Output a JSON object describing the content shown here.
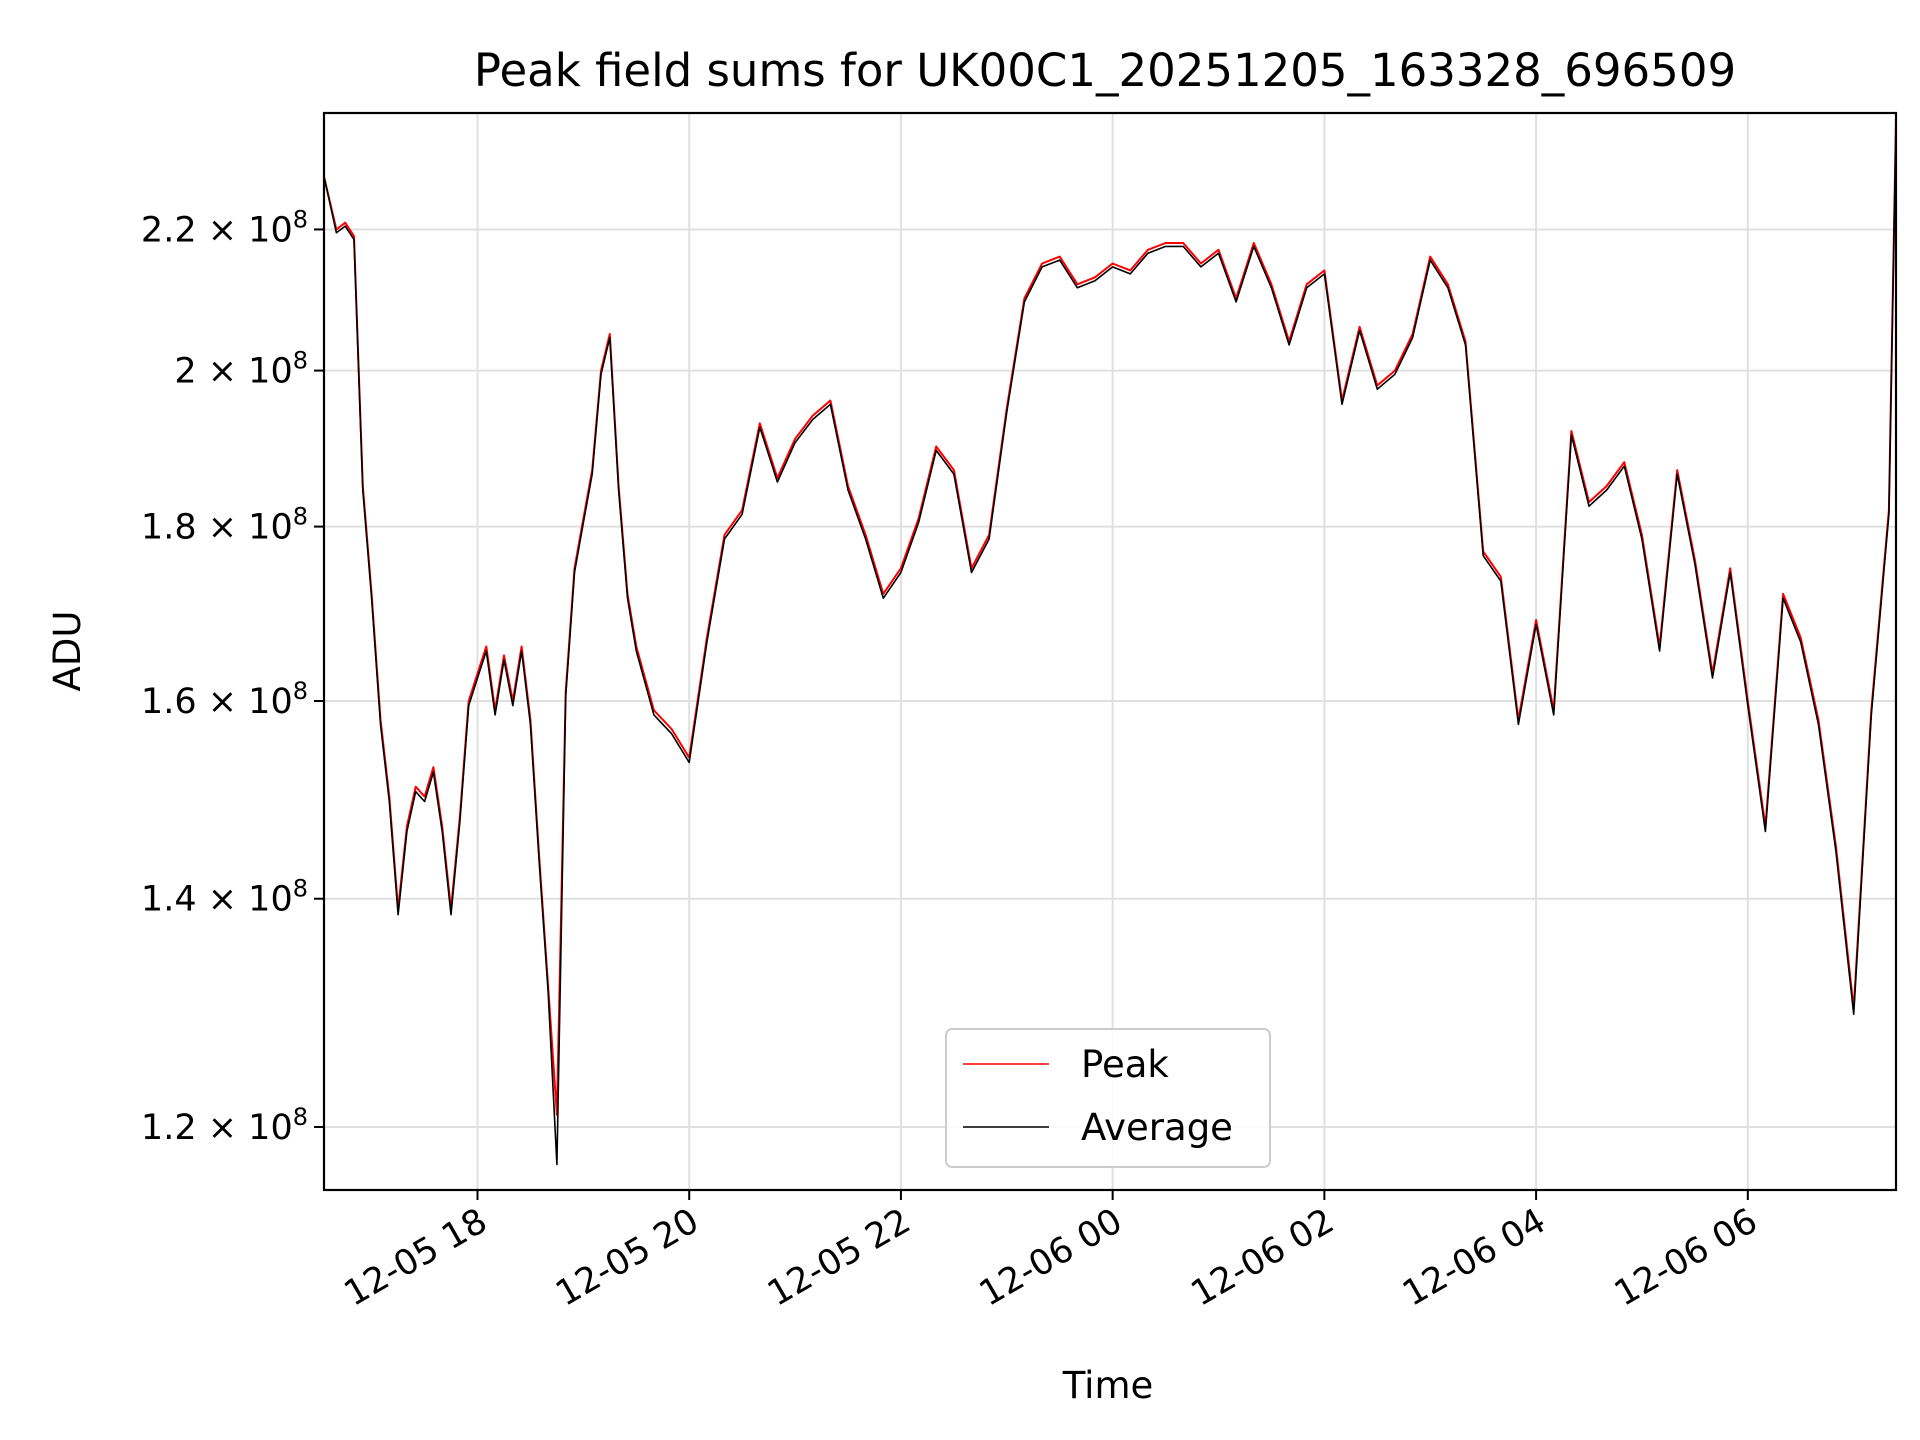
{
  "chart_data": {
    "type": "line",
    "title": "Peak field sums for UK00C1_20251205_163328_696509",
    "xlabel": "Time",
    "ylabel": "ADU",
    "yscale": "log",
    "xlim": [
      "2025-12-05 16:33",
      "2025-12-06 07:24"
    ],
    "ylim": [
      115000000,
      238000000
    ],
    "grid": true,
    "legend_position": "lower center",
    "x_ticks": [
      {
        "value": "2025-12-05 18:00",
        "label": "12-05 18"
      },
      {
        "value": "2025-12-05 20:00",
        "label": "12-05 20"
      },
      {
        "value": "2025-12-05 22:00",
        "label": "12-05 22"
      },
      {
        "value": "2025-12-06 00:00",
        "label": "12-06 00"
      },
      {
        "value": "2025-12-06 02:00",
        "label": "12-06 02"
      },
      {
        "value": "2025-12-06 04:00",
        "label": "12-06 04"
      },
      {
        "value": "2025-12-06 06:00",
        "label": "12-06 06"
      }
    ],
    "y_ticks": [
      {
        "value": 120000000,
        "mantissa": "1.2",
        "base": "10",
        "exponent": "8"
      },
      {
        "value": 140000000,
        "mantissa": "1.4",
        "base": "10",
        "exponent": "8"
      },
      {
        "value": 160000000,
        "mantissa": "1.6",
        "base": "10",
        "exponent": "8"
      },
      {
        "value": 180000000,
        "mantissa": "1.8",
        "base": "10",
        "exponent": "8"
      },
      {
        "value": 200000000,
        "mantissa": "2",
        "base": "10",
        "exponent": "8"
      },
      {
        "value": 220000000,
        "mantissa": "2.2",
        "base": "10",
        "exponent": "8"
      }
    ],
    "x": [
      "2025-12-05 16:33",
      "2025-12-05 16:40",
      "2025-12-05 16:45",
      "2025-12-05 16:50",
      "2025-12-05 16:55",
      "2025-12-05 17:00",
      "2025-12-05 17:05",
      "2025-12-05 17:10",
      "2025-12-05 17:15",
      "2025-12-05 17:20",
      "2025-12-05 17:25",
      "2025-12-05 17:30",
      "2025-12-05 17:35",
      "2025-12-05 17:40",
      "2025-12-05 17:45",
      "2025-12-05 17:50",
      "2025-12-05 17:55",
      "2025-12-05 18:00",
      "2025-12-05 18:05",
      "2025-12-05 18:10",
      "2025-12-05 18:15",
      "2025-12-05 18:20",
      "2025-12-05 18:25",
      "2025-12-05 18:30",
      "2025-12-05 18:35",
      "2025-12-05 18:40",
      "2025-12-05 18:45",
      "2025-12-05 18:50",
      "2025-12-05 18:55",
      "2025-12-05 19:00",
      "2025-12-05 19:05",
      "2025-12-05 19:10",
      "2025-12-05 19:15",
      "2025-12-05 19:20",
      "2025-12-05 19:25",
      "2025-12-05 19:30",
      "2025-12-05 19:40",
      "2025-12-05 19:50",
      "2025-12-05 20:00",
      "2025-12-05 20:10",
      "2025-12-05 20:20",
      "2025-12-05 20:30",
      "2025-12-05 20:40",
      "2025-12-05 20:50",
      "2025-12-05 21:00",
      "2025-12-05 21:10",
      "2025-12-05 21:20",
      "2025-12-05 21:30",
      "2025-12-05 21:40",
      "2025-12-05 21:50",
      "2025-12-05 22:00",
      "2025-12-05 22:10",
      "2025-12-05 22:20",
      "2025-12-05 22:30",
      "2025-12-05 22:40",
      "2025-12-05 22:50",
      "2025-12-05 23:00",
      "2025-12-05 23:10",
      "2025-12-05 23:20",
      "2025-12-05 23:30",
      "2025-12-05 23:40",
      "2025-12-05 23:50",
      "2025-12-06 00:00",
      "2025-12-06 00:10",
      "2025-12-06 00:20",
      "2025-12-06 00:30",
      "2025-12-06 00:40",
      "2025-12-06 00:50",
      "2025-12-06 01:00",
      "2025-12-06 01:10",
      "2025-12-06 01:20",
      "2025-12-06 01:30",
      "2025-12-06 01:40",
      "2025-12-06 01:50",
      "2025-12-06 02:00",
      "2025-12-06 02:10",
      "2025-12-06 02:20",
      "2025-12-06 02:30",
      "2025-12-06 02:40",
      "2025-12-06 02:50",
      "2025-12-06 03:00",
      "2025-12-06 03:10",
      "2025-12-06 03:20",
      "2025-12-06 03:30",
      "2025-12-06 03:40",
      "2025-12-06 03:50",
      "2025-12-06 04:00",
      "2025-12-06 04:10",
      "2025-12-06 04:20",
      "2025-12-06 04:30",
      "2025-12-06 04:40",
      "2025-12-06 04:50",
      "2025-12-06 05:00",
      "2025-12-06 05:10",
      "2025-12-06 05:20",
      "2025-12-06 05:30",
      "2025-12-06 05:40",
      "2025-12-06 05:50",
      "2025-12-06 06:00",
      "2025-12-06 06:10",
      "2025-12-06 06:20",
      "2025-12-06 06:30",
      "2025-12-06 06:40",
      "2025-12-06 06:50",
      "2025-12-06 07:00",
      "2025-12-06 07:10",
      "2025-12-06 07:20",
      "2025-12-06 07:24"
    ],
    "series": [
      {
        "name": "Peak",
        "color": "#ff0000",
        "values": [
          228000000,
          220000000,
          221000000,
          219000000,
          185000000,
          172000000,
          158000000,
          150000000,
          139000000,
          147000000,
          151000000,
          150000000,
          153000000,
          147000000,
          139000000,
          148000000,
          160000000,
          163000000,
          166000000,
          159000000,
          165000000,
          160000000,
          166000000,
          158000000,
          144000000,
          132000000,
          121000000,
          161000000,
          175000000,
          181000000,
          187000000,
          200000000,
          205000000,
          185000000,
          172000000,
          166000000,
          159000000,
          157000000,
          154000000,
          167000000,
          179000000,
          182000000,
          193000000,
          186000000,
          191000000,
          194000000,
          196000000,
          185000000,
          179000000,
          172000000,
          175000000,
          181000000,
          190000000,
          187000000,
          175000000,
          179000000,
          195000000,
          210000000,
          215000000,
          216000000,
          212000000,
          213000000,
          215000000,
          214000000,
          217000000,
          218000000,
          218000000,
          215000000,
          217000000,
          210000000,
          218000000,
          212000000,
          204000000,
          212000000,
          214000000,
          196000000,
          206000000,
          198000000,
          200000000,
          205000000,
          216000000,
          212000000,
          204000000,
          177000000,
          174000000,
          158000000,
          169000000,
          159000000,
          192000000,
          183000000,
          185000000,
          188000000,
          179000000,
          166000000,
          187000000,
          176000000,
          163000000,
          175000000,
          160000000,
          147000000,
          172000000,
          167000000,
          158000000,
          145000000,
          130000000,
          159000000,
          182000000,
          237000000
        ]
      },
      {
        "name": "Average",
        "color": "#000000",
        "values": [
          228000000,
          219500000,
          220500000,
          218500000,
          184500000,
          171500000,
          157500000,
          149500000,
          138500000,
          146500000,
          150500000,
          149500000,
          152500000,
          146500000,
          138500000,
          147500000,
          159500000,
          162500000,
          165500000,
          158500000,
          164500000,
          159500000,
          165500000,
          157500000,
          143500000,
          131500000,
          117000000,
          160500000,
          174500000,
          180500000,
          186500000,
          199500000,
          204500000,
          184500000,
          171500000,
          165500000,
          158500000,
          156500000,
          153500000,
          166500000,
          178500000,
          181500000,
          192500000,
          185500000,
          190500000,
          193500000,
          195500000,
          184500000,
          178500000,
          171500000,
          174500000,
          180500000,
          189500000,
          186500000,
          174500000,
          178500000,
          194500000,
          209500000,
          214500000,
          215500000,
          211500000,
          212500000,
          214500000,
          213500000,
          216500000,
          217500000,
          217500000,
          214500000,
          216500000,
          209500000,
          217500000,
          211500000,
          203500000,
          211500000,
          213500000,
          195500000,
          205500000,
          197500000,
          199500000,
          204500000,
          215500000,
          211500000,
          203500000,
          176500000,
          173500000,
          157500000,
          168500000,
          158500000,
          191500000,
          182500000,
          184500000,
          187500000,
          178500000,
          165500000,
          186500000,
          175500000,
          162500000,
          174500000,
          159500000,
          146500000,
          171500000,
          166500000,
          157500000,
          144500000,
          129500000,
          158500000,
          181500000,
          236500000
        ]
      }
    ]
  }
}
